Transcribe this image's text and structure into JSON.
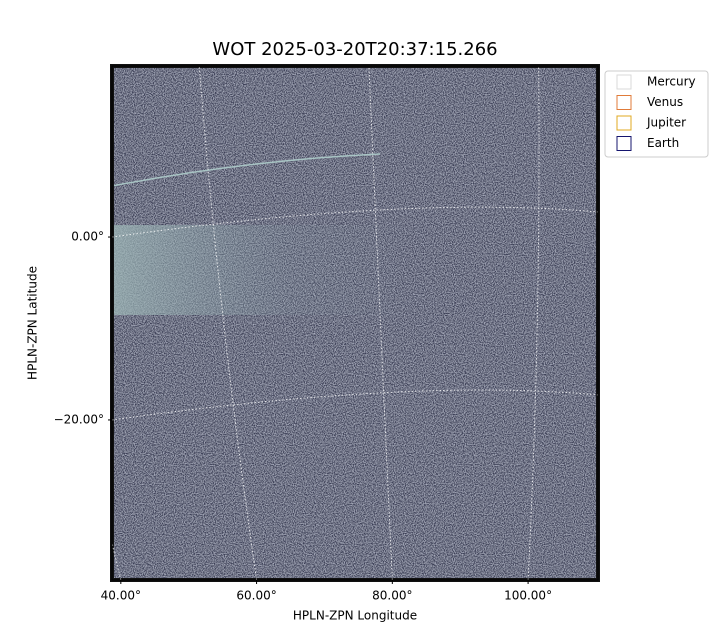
{
  "chart_data": {
    "type": "image",
    "title": "WOT 2025-03-20T20:37:15.266",
    "xlabel": "HPLN-ZPN Longitude",
    "ylabel": "HPLN-ZPN Latitude",
    "xlim": [
      38.7,
      110.3
    ],
    "ylim": [
      -37.5,
      18.7
    ],
    "xticks": [
      {
        "value": 40,
        "label": "40.00°"
      },
      {
        "value": 60,
        "label": "60.00°"
      },
      {
        "value": 80,
        "label": "80.00°"
      },
      {
        "value": 100,
        "label": "100.00°"
      }
    ],
    "yticks": [
      {
        "value": 0,
        "label": "0.00°"
      },
      {
        "value": -20,
        "label": "−20.00°"
      }
    ],
    "grid": true,
    "series": [
      {
        "name": "Mercury",
        "color": "#d9d9d9"
      },
      {
        "name": "Venus",
        "color": "#e07b39"
      },
      {
        "name": "Jupiter",
        "color": "#e0a820"
      },
      {
        "name": "Earth",
        "color": "#14146e"
      }
    ]
  }
}
